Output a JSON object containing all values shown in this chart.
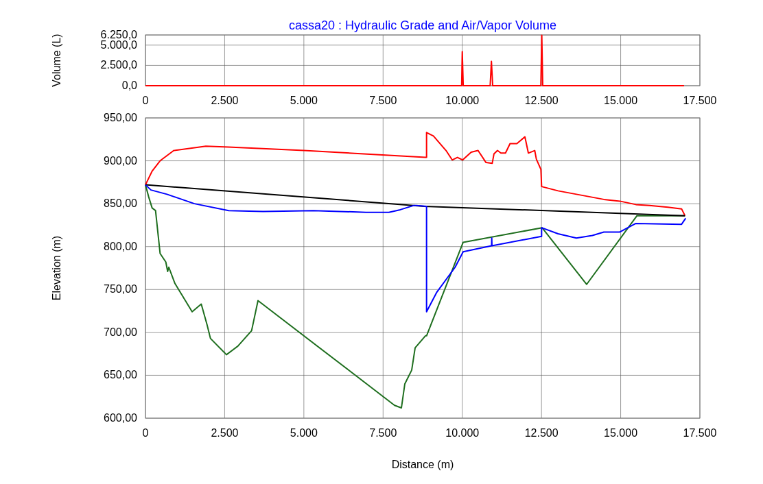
{
  "chart_data": [
    {
      "type": "line",
      "title": "cassa20 : Hydraulic Grade and Air/Vapor Volume",
      "ylabel": "Volume (L)",
      "grid": true,
      "marker": "none",
      "line_style": "solid",
      "xlim": [
        0,
        17500
      ],
      "xticks": [
        {
          "value": 0,
          "label": "0"
        },
        {
          "value": 2500,
          "label": "2.500"
        },
        {
          "value": 5000,
          "label": "5.000"
        },
        {
          "value": 7500,
          "label": "7.500"
        },
        {
          "value": 10000,
          "label": "10.000"
        },
        {
          "value": 12500,
          "label": "12.500"
        },
        {
          "value": 15000,
          "label": "15.000"
        },
        {
          "value": 17500,
          "label": "17.500"
        }
      ],
      "ylim": [
        0,
        6250
      ],
      "yticks": [
        {
          "value": 0,
          "label": "0,0"
        },
        {
          "value": 2500,
          "label": "2.500,0"
        },
        {
          "value": 5000,
          "label": "5.000,0"
        },
        {
          "value": 6250,
          "label": "6.250,0"
        }
      ],
      "series": [
        {
          "color": "#ff0000",
          "x": [
            0,
            9980,
            10000,
            10030,
            10880,
            10920,
            10960,
            12480,
            12510,
            12540,
            17000
          ],
          "values": [
            0,
            0,
            4200,
            0,
            0,
            3000,
            0,
            0,
            6200,
            0,
            0
          ]
        }
      ]
    },
    {
      "type": "line",
      "xlabel": "Distance (m)",
      "ylabel": "Elevation (m)",
      "grid": true,
      "marker": "none",
      "line_style": "solid",
      "xlim": [
        0,
        17500
      ],
      "xticks": [
        {
          "value": 0,
          "label": "0"
        },
        {
          "value": 2500,
          "label": "2.500"
        },
        {
          "value": 5000,
          "label": "5.000"
        },
        {
          "value": 7500,
          "label": "7.500"
        },
        {
          "value": 10000,
          "label": "10.000"
        },
        {
          "value": 12500,
          "label": "12.500"
        },
        {
          "value": 15000,
          "label": "15.000"
        },
        {
          "value": 17500,
          "label": "17.500"
        }
      ],
      "ylim": [
        600,
        950
      ],
      "yticks": [
        {
          "value": 600,
          "label": "600,00"
        },
        {
          "value": 650,
          "label": "650,00"
        },
        {
          "value": 700,
          "label": "700,00"
        },
        {
          "value": 750,
          "label": "750,00"
        },
        {
          "value": 800,
          "label": "800,00"
        },
        {
          "value": 850,
          "label": "850,00"
        },
        {
          "value": 900,
          "label": "900,00"
        },
        {
          "value": 950,
          "label": "950,00"
        }
      ],
      "series": [
        {
          "color": "#1e6e1e",
          "x": [
            0,
            101,
            210,
            318,
            462,
            643,
            700,
            736,
            931,
            1473,
            1761,
            1943,
            2051,
            2556,
            2917,
            3350,
            3552,
            7862,
            8079,
            8187,
            8404,
            8512,
            8837,
            8873,
            10028,
            12519,
            13927,
            15515,
            17030
          ],
          "values": [
            872,
            858,
            845,
            842,
            792,
            782,
            771,
            776,
            757,
            724,
            733,
            709,
            693,
            674,
            684,
            702,
            737,
            615,
            612,
            640,
            656,
            682,
            696,
            696,
            805,
            822,
            756,
            836,
            836
          ]
        },
        {
          "color": "#ff0000",
          "x": [
            0,
            210,
            462,
            895,
            1906,
            2620,
            5006,
            8837,
            8873,
            8873,
            9090,
            9487,
            9682,
            9847,
            10013,
            10281,
            10498,
            10750,
            10945,
            11000,
            11111,
            11219,
            11364,
            11508,
            11724,
            11977,
            12086,
            12287,
            12339,
            12482,
            12504,
            13024,
            13747,
            14469,
            14974,
            15479,
            15912,
            16489,
            16922,
            17030
          ],
          "values": [
            872,
            888,
            900,
            912,
            917,
            916,
            912,
            904,
            904,
            933,
            929,
            912,
            901,
            904,
            901,
            910,
            912,
            898,
            897,
            908,
            912,
            909,
            909,
            920,
            920,
            928,
            909,
            912,
            902,
            890,
            870,
            865,
            860,
            855,
            853,
            849,
            848,
            846,
            844,
            836
          ]
        },
        {
          "color": "#000000",
          "x": [
            0,
            8800,
            17030
          ],
          "values": [
            872,
            847,
            836
          ]
        },
        {
          "color": "#0000ff",
          "x": [
            0,
            173,
            678,
            1545,
            2628,
            3711,
            5300,
            6960,
            7682,
            8043,
            8476,
            8549,
            8873,
            8873,
            9198,
            9775,
            10028,
            10925,
            10931,
            10937,
            12504,
            12504,
            13024,
            13602,
            14107,
            14469,
            14974,
            15479,
            16922,
            17052
          ],
          "values": [
            872,
            866,
            861,
            850,
            842,
            841,
            842,
            840,
            840,
            843,
            848,
            848,
            847,
            724,
            747,
            776,
            794,
            801,
            810,
            801,
            812,
            822,
            815,
            810,
            813,
            817,
            817,
            827,
            826,
            833
          ]
        }
      ]
    }
  ]
}
